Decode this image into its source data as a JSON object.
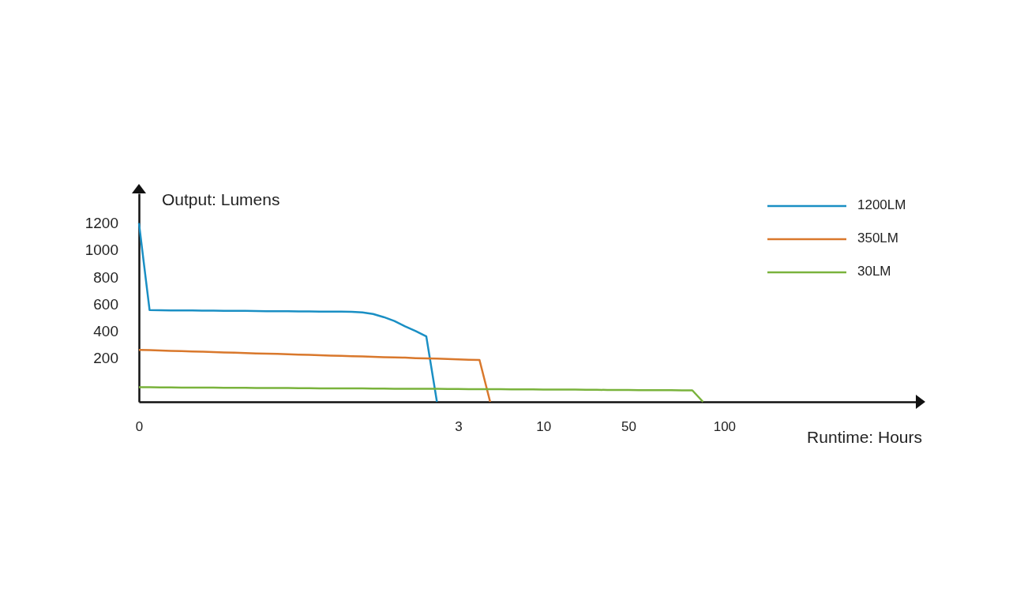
{
  "chart_data": {
    "type": "line",
    "xlabel": "Runtime: Hours",
    "ylabel": "Output: Lumens",
    "categories": [
      "0",
      null,
      null,
      null,
      null,
      null,
      null,
      null,
      null,
      null,
      null,
      null,
      null,
      null,
      null,
      null,
      null,
      null,
      null,
      null,
      null,
      null,
      null,
      null,
      null,
      null,
      null,
      null,
      null,
      null,
      "3",
      null,
      null,
      null,
      null,
      null,
      null,
      null,
      "10",
      null,
      null,
      null,
      null,
      null,
      null,
      null,
      "50",
      null,
      null,
      null,
      null,
      null,
      null,
      null,
      null,
      "100",
      null,
      null,
      null,
      null,
      null,
      null,
      null,
      null,
      null,
      null,
      null,
      null,
      null,
      null,
      null,
      null,
      null,
      null
    ],
    "ylim": [
      -125,
      1420
    ],
    "yticks": [
      200,
      400,
      600,
      800,
      1000,
      1200
    ],
    "grid": false,
    "legend": "top right",
    "marker": "none",
    "line_style": "solid",
    "series": [
      {
        "name": "1200LM",
        "color": "#1a8fc4",
        "values": [
          1200,
          555,
          554,
          553,
          553,
          552,
          551,
          551,
          550,
          549,
          549,
          548,
          547,
          547,
          546,
          545,
          545,
          544,
          543,
          543,
          542,
          538,
          526,
          503,
          474,
          434,
          399,
          360,
          -125,
          null,
          null,
          null,
          null,
          null,
          null,
          null,
          null,
          null,
          null,
          null,
          null,
          null,
          null,
          null,
          null,
          null,
          null,
          null,
          null,
          null,
          null,
          null,
          null,
          null,
          null,
          null,
          null,
          null,
          null,
          null,
          null,
          null,
          null,
          null,
          null,
          null,
          null,
          null,
          null,
          null,
          null,
          null,
          null,
          null
        ]
      },
      {
        "name": "350LM",
        "color": "#d9782c",
        "values": [
          260,
          258,
          255,
          253,
          251,
          248,
          246,
          244,
          241,
          239,
          237,
          234,
          232,
          230,
          227,
          225,
          223,
          220,
          218,
          216,
          213,
          211,
          209,
          206,
          204,
          202,
          199,
          197,
          195,
          192,
          190,
          187,
          185,
          -125,
          null,
          null,
          null,
          null,
          null,
          null,
          null,
          null,
          null,
          null,
          null,
          null,
          null,
          null,
          null,
          null,
          null,
          null,
          null,
          null,
          null,
          null,
          null,
          null,
          null,
          null,
          null,
          null,
          null,
          null,
          null,
          null,
          null,
          null,
          null,
          null,
          null,
          null,
          null,
          null
        ]
      },
      {
        "name": "30LM",
        "color": "#7ab33c",
        "values": [
          -17,
          -17,
          -18,
          -18,
          -19,
          -19,
          -20,
          -20,
          -21,
          -21,
          -21,
          -22,
          -22,
          -23,
          -23,
          -24,
          -24,
          -25,
          -25,
          -25,
          -26,
          -26,
          -27,
          -27,
          -28,
          -28,
          -29,
          -29,
          -29,
          -30,
          -30,
          -31,
          -31,
          -32,
          -32,
          -33,
          -33,
          -33,
          -34,
          -34,
          -35,
          -35,
          -36,
          -36,
          -37,
          -37,
          -37,
          -38,
          -38,
          -39,
          -39,
          -40,
          -40,
          -125,
          null,
          null,
          null,
          null,
          null,
          null,
          null,
          null,
          null,
          null,
          null,
          null,
          null,
          null,
          null,
          null,
          null,
          null,
          null,
          null
        ]
      }
    ]
  }
}
